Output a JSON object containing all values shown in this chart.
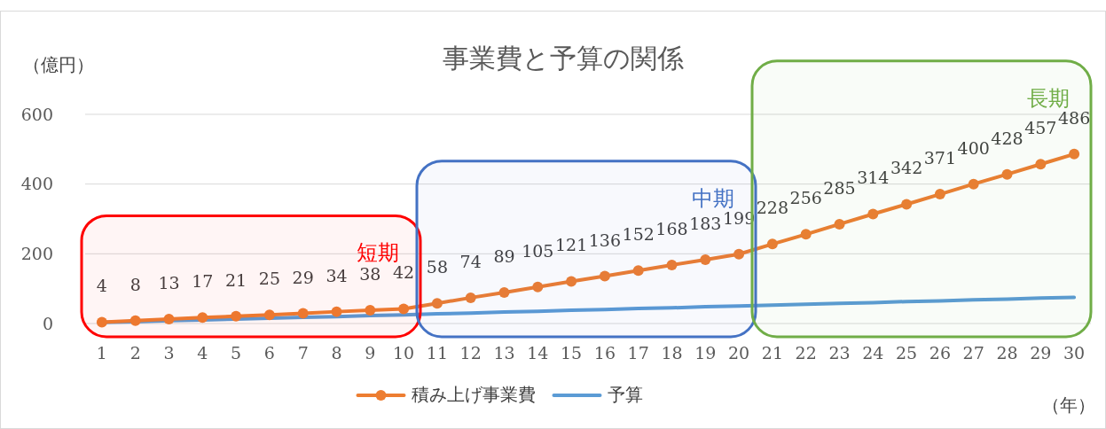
{
  "chart_data": {
    "type": "line",
    "title": "事業費と予算の関係",
    "ylabel": "（億円）",
    "xlabel": "（年）",
    "x": [
      1,
      2,
      3,
      4,
      5,
      6,
      7,
      8,
      9,
      10,
      11,
      12,
      13,
      14,
      15,
      16,
      17,
      18,
      19,
      20,
      21,
      22,
      23,
      24,
      25,
      26,
      27,
      28,
      29,
      30
    ],
    "xlim": [
      0.5,
      30.5
    ],
    "xticks": [
      1,
      2,
      3,
      4,
      5,
      6,
      7,
      8,
      9,
      10,
      11,
      12,
      13,
      14,
      15,
      16,
      17,
      18,
      19,
      20,
      21,
      22,
      23,
      24,
      25,
      26,
      27,
      28,
      29,
      30
    ],
    "ylim": [
      0,
      600
    ],
    "yticks": [
      0,
      200,
      400,
      600
    ],
    "grid": "y",
    "legend": "bottom",
    "series": [
      {
        "name": "積み上げ事業費",
        "color": "#ed7d31",
        "marker": "circle",
        "data_labels": true,
        "values": [
          4,
          8,
          13,
          17,
          21,
          25,
          29,
          34,
          38,
          42,
          58,
          74,
          89,
          105,
          121,
          136,
          152,
          168,
          183,
          199,
          228,
          256,
          285,
          314,
          342,
          371,
          400,
          428,
          457,
          486
        ]
      },
      {
        "name": "予算",
        "color": "#5b9bd5",
        "marker": "none",
        "values": [
          3,
          5,
          8,
          10,
          13,
          15,
          18,
          20,
          23,
          25,
          28,
          30,
          33,
          35,
          38,
          40,
          43,
          45,
          48,
          50,
          53,
          55,
          58,
          60,
          63,
          65,
          68,
          70,
          73,
          75
        ]
      }
    ],
    "bands": [
      {
        "axis": "x",
        "from": 0.5,
        "to": 10.5,
        "label": "短期",
        "color": "#ff0000"
      },
      {
        "axis": "x",
        "from": 10.5,
        "to": 20.5,
        "label": "中期",
        "color": "#4472c4"
      },
      {
        "axis": "x",
        "from": 20.5,
        "to": 30.5,
        "label": "長期",
        "color": "#70ad47"
      }
    ]
  }
}
